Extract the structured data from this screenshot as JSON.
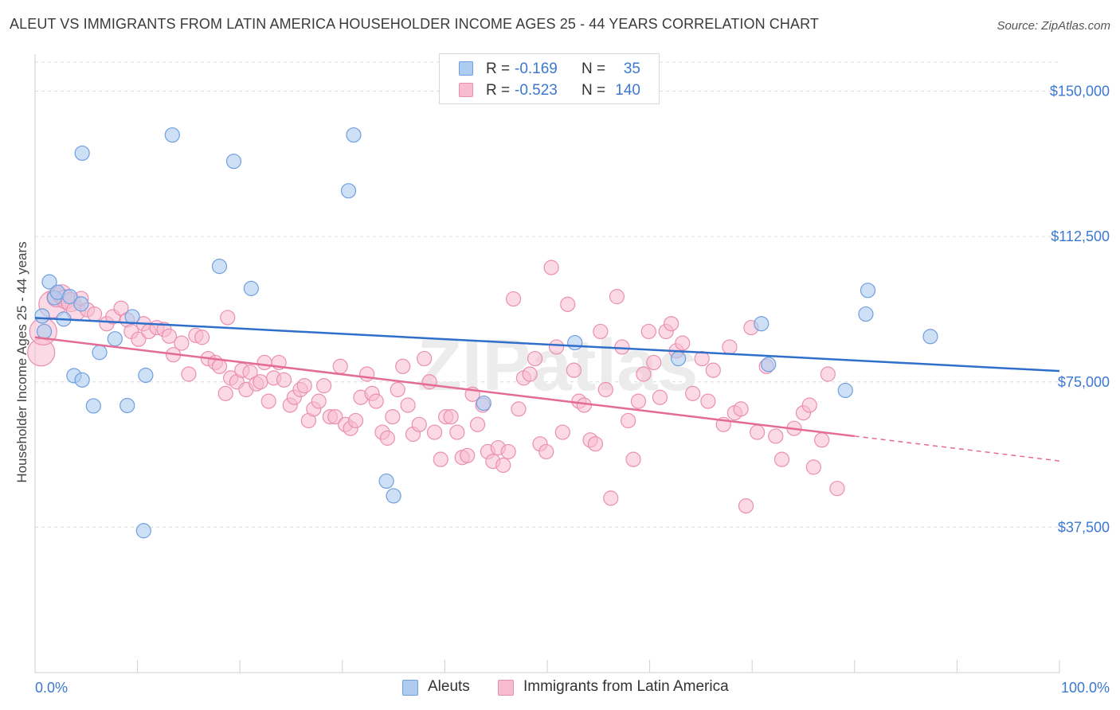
{
  "title": "ALEUT VS IMMIGRANTS FROM LATIN AMERICA HOUSEHOLDER INCOME AGES 25 - 44 YEARS CORRELATION CHART",
  "source": "Source: ZipAtlas.com",
  "watermark": "ZIPatlas",
  "colors": {
    "aleut_fill": "#aecbf0",
    "aleut_stroke": "#6f9fdf",
    "aleut_line": "#2f6fcb",
    "latin_fill": "#f7bcd0",
    "latin_stroke": "#ea8fb0",
    "latin_line": "#e46b96",
    "value_text": "#3b78d0"
  },
  "legend_top": {
    "rows": [
      {
        "r_label": "R =",
        "r_value": "-0.169",
        "n_label": "N =",
        "n_value": "35"
      },
      {
        "r_label": "R =",
        "r_value": "-0.523",
        "n_label": "N =",
        "n_value": "140"
      }
    ]
  },
  "legend_bottom": {
    "items": [
      {
        "label": "Aleuts"
      },
      {
        "label": "Immigrants from Latin America"
      }
    ]
  },
  "chart_data": {
    "type": "scatter",
    "title": "ALEUT VS IMMIGRANTS FROM LATIN AMERICA HOUSEHOLDER INCOME AGES 25 - 44 YEARS CORRELATION CHART",
    "xlabel": "",
    "ylabel": "Householder Income Ages 25 - 44 years",
    "xlim": [
      0,
      100
    ],
    "ylim": [
      0,
      157500
    ],
    "x_tick_labels": [
      "0.0%",
      "100.0%"
    ],
    "y_ticks": [
      37500,
      75000,
      112500,
      150000
    ],
    "y_tick_labels": [
      "$37,500",
      "$75,000",
      "$112,500",
      "$150,000"
    ],
    "grid": true,
    "legend_position": "top-center",
    "series": [
      {
        "name": "Aleuts",
        "r": -0.169,
        "n": 35,
        "trend": {
          "x": [
            0,
            100
          ],
          "y": [
            91500,
            77800
          ]
        },
        "points": [
          [
            1.4,
            100800
          ],
          [
            1.9,
            96700
          ],
          [
            2.2,
            98100
          ],
          [
            3.4,
            97000
          ],
          [
            0.7,
            92000
          ],
          [
            0.9,
            88000
          ],
          [
            2.8,
            91200
          ],
          [
            4.5,
            95100
          ],
          [
            9.5,
            91800
          ],
          [
            7.8,
            86100
          ],
          [
            6.3,
            82600
          ],
          [
            3.8,
            76600
          ],
          [
            4.6,
            75500
          ],
          [
            5.7,
            68800
          ],
          [
            9.0,
            68900
          ],
          [
            10.8,
            76700
          ],
          [
            4.6,
            134000
          ],
          [
            13.4,
            138700
          ],
          [
            19.4,
            131900
          ],
          [
            30.6,
            124300
          ],
          [
            31.1,
            138700
          ],
          [
            18.0,
            104800
          ],
          [
            21.1,
            99100
          ],
          [
            34.3,
            49400
          ],
          [
            35.0,
            45600
          ],
          [
            10.6,
            36600
          ],
          [
            43.8,
            69500
          ],
          [
            52.7,
            85100
          ],
          [
            62.8,
            81000
          ],
          [
            70.9,
            90000
          ],
          [
            71.6,
            79500
          ],
          [
            79.1,
            72800
          ],
          [
            81.1,
            92500
          ],
          [
            81.3,
            98600
          ],
          [
            87.4,
            86700
          ]
        ]
      },
      {
        "name": "Immigrants from Latin America",
        "r": -0.523,
        "n": 140,
        "trend": {
          "x": [
            0,
            80
          ],
          "y": [
            86500,
            61000
          ]
        },
        "trend_dashed": {
          "x": [
            80,
            100
          ],
          "y": [
            61000,
            54600
          ]
        },
        "points": [
          [
            0.6,
            82600
          ],
          [
            0.8,
            88000
          ],
          [
            1.7,
            95000
          ],
          [
            2.1,
            96800
          ],
          [
            2.6,
            97600
          ],
          [
            3.0,
            96300
          ],
          [
            3.5,
            95600
          ],
          [
            4.0,
            93300
          ],
          [
            4.5,
            96500
          ],
          [
            5.1,
            93600
          ],
          [
            5.8,
            92500
          ],
          [
            7.0,
            90000
          ],
          [
            7.6,
            91800
          ],
          [
            8.4,
            94000
          ],
          [
            9.0,
            91000
          ],
          [
            9.4,
            88000
          ],
          [
            10.1,
            86000
          ],
          [
            10.6,
            90000
          ],
          [
            11.1,
            88000
          ],
          [
            11.9,
            89000
          ],
          [
            12.6,
            88500
          ],
          [
            13.1,
            86800
          ],
          [
            13.5,
            82000
          ],
          [
            14.3,
            85000
          ],
          [
            15.0,
            77000
          ],
          [
            15.7,
            87000
          ],
          [
            16.3,
            86500
          ],
          [
            16.9,
            81000
          ],
          [
            17.6,
            80000
          ],
          [
            18.0,
            79000
          ],
          [
            18.6,
            72000
          ],
          [
            18.8,
            91600
          ],
          [
            19.1,
            76000
          ],
          [
            19.7,
            75000
          ],
          [
            20.2,
            78000
          ],
          [
            20.6,
            73000
          ],
          [
            21.0,
            77500
          ],
          [
            21.6,
            74500
          ],
          [
            22.0,
            75000
          ],
          [
            22.4,
            80000
          ],
          [
            22.8,
            70000
          ],
          [
            23.3,
            76000
          ],
          [
            23.8,
            80000
          ],
          [
            24.3,
            75500
          ],
          [
            24.9,
            69000
          ],
          [
            25.3,
            71000
          ],
          [
            25.9,
            73000
          ],
          [
            26.3,
            74000
          ],
          [
            26.7,
            65000
          ],
          [
            27.2,
            68000
          ],
          [
            27.7,
            70000
          ],
          [
            28.2,
            74000
          ],
          [
            28.8,
            66000
          ],
          [
            29.3,
            66000
          ],
          [
            29.8,
            79000
          ],
          [
            30.3,
            64000
          ],
          [
            30.8,
            63000
          ],
          [
            31.3,
            65000
          ],
          [
            31.8,
            71000
          ],
          [
            32.4,
            77000
          ],
          [
            32.9,
            72000
          ],
          [
            33.3,
            70000
          ],
          [
            33.9,
            62000
          ],
          [
            34.4,
            60500
          ],
          [
            34.9,
            66000
          ],
          [
            35.4,
            73000
          ],
          [
            35.9,
            79000
          ],
          [
            36.4,
            69000
          ],
          [
            36.9,
            61500
          ],
          [
            37.5,
            64000
          ],
          [
            38.0,
            81000
          ],
          [
            38.5,
            75000
          ],
          [
            39.0,
            62000
          ],
          [
            39.6,
            55000
          ],
          [
            40.1,
            66000
          ],
          [
            40.6,
            66000
          ],
          [
            41.2,
            62000
          ],
          [
            41.7,
            55500
          ],
          [
            42.2,
            56000
          ],
          [
            42.7,
            71800
          ],
          [
            43.2,
            64000
          ],
          [
            43.7,
            69000
          ],
          [
            44.2,
            57000
          ],
          [
            44.7,
            54500
          ],
          [
            45.2,
            58000
          ],
          [
            45.7,
            53500
          ],
          [
            46.2,
            57000
          ],
          [
            46.7,
            96400
          ],
          [
            47.2,
            68000
          ],
          [
            47.7,
            76000
          ],
          [
            48.3,
            77000
          ],
          [
            48.8,
            81000
          ],
          [
            49.3,
            59000
          ],
          [
            49.9,
            57000
          ],
          [
            50.4,
            104500
          ],
          [
            50.9,
            84000
          ],
          [
            51.5,
            62000
          ],
          [
            52.0,
            95000
          ],
          [
            52.6,
            78000
          ],
          [
            53.1,
            70000
          ],
          [
            53.6,
            69000
          ],
          [
            54.2,
            60000
          ],
          [
            54.7,
            59000
          ],
          [
            55.2,
            88000
          ],
          [
            55.7,
            73000
          ],
          [
            56.2,
            45000
          ],
          [
            56.8,
            97000
          ],
          [
            57.3,
            84000
          ],
          [
            57.9,
            65000
          ],
          [
            58.4,
            55000
          ],
          [
            58.9,
            70000
          ],
          [
            59.4,
            77000
          ],
          [
            59.9,
            88000
          ],
          [
            60.4,
            80000
          ],
          [
            61.0,
            71000
          ],
          [
            61.6,
            88000
          ],
          [
            62.1,
            90000
          ],
          [
            62.6,
            83000
          ],
          [
            63.2,
            85000
          ],
          [
            64.2,
            72000
          ],
          [
            65.1,
            81000
          ],
          [
            65.7,
            70000
          ],
          [
            66.2,
            78000
          ],
          [
            67.2,
            64000
          ],
          [
            67.8,
            84000
          ],
          [
            68.3,
            67000
          ],
          [
            68.9,
            68000
          ],
          [
            69.4,
            43000
          ],
          [
            69.9,
            89000
          ],
          [
            70.5,
            62000
          ],
          [
            71.4,
            79000
          ],
          [
            72.3,
            61000
          ],
          [
            72.9,
            55000
          ],
          [
            74.1,
            63000
          ],
          [
            75.0,
            67000
          ],
          [
            75.6,
            69000
          ],
          [
            76.0,
            53000
          ],
          [
            76.8,
            60000
          ],
          [
            77.4,
            77000
          ],
          [
            78.3,
            47500
          ]
        ]
      }
    ]
  }
}
